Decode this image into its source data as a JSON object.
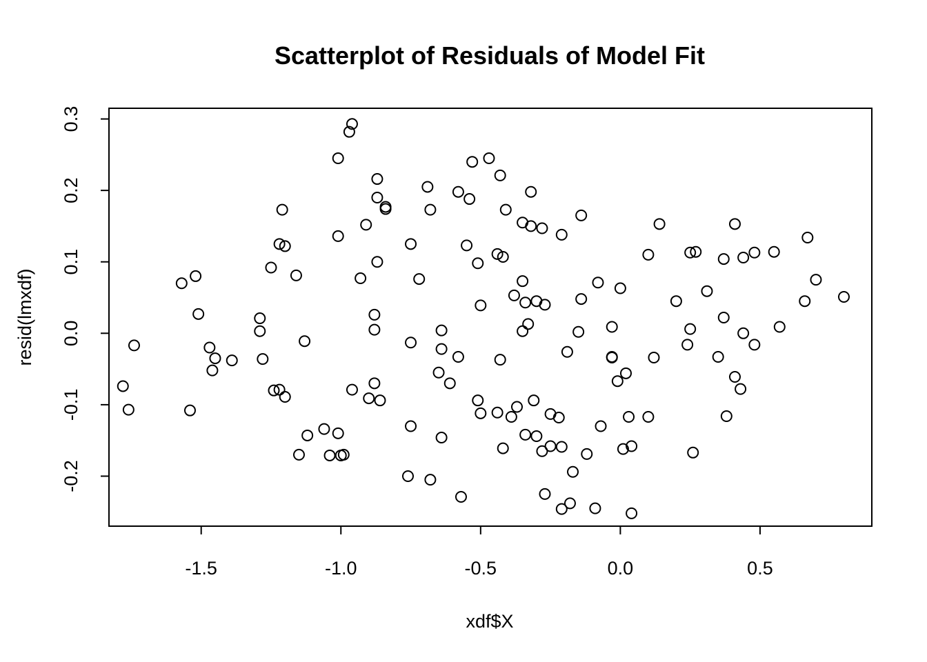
{
  "chart_data": {
    "type": "scatter",
    "title": "Scatterplot of Residuals of Model Fit",
    "xlabel": "xdf$X",
    "ylabel": "resid(lmxdf)",
    "xlim": [
      -1.83,
      0.9
    ],
    "ylim": [
      -0.27,
      0.315
    ],
    "xticks": [
      -1.5,
      -1.0,
      -0.5,
      0.0,
      0.5
    ],
    "xtick_labels": [
      "-1.5",
      "-1.0",
      "-0.5",
      "0.0",
      "0.5"
    ],
    "yticks": [
      -0.2,
      -0.1,
      0.0,
      0.1,
      0.2,
      0.3
    ],
    "ytick_labels": [
      "-0.2",
      "-0.1",
      "0.0",
      "0.1",
      "0.2",
      "0.3"
    ],
    "grid": false,
    "legend": "none",
    "marker": "open-circle",
    "points": [
      {
        "x": -1.78,
        "y": -0.074
      },
      {
        "x": -1.76,
        "y": -0.107
      },
      {
        "x": -1.74,
        "y": -0.017
      },
      {
        "x": -1.57,
        "y": 0.07
      },
      {
        "x": -1.54,
        "y": -0.108
      },
      {
        "x": -1.52,
        "y": 0.08
      },
      {
        "x": -1.51,
        "y": 0.027
      },
      {
        "x": -1.47,
        "y": -0.02
      },
      {
        "x": -1.46,
        "y": -0.052
      },
      {
        "x": -1.45,
        "y": -0.035
      },
      {
        "x": -1.39,
        "y": -0.038
      },
      {
        "x": -1.29,
        "y": 0.021
      },
      {
        "x": -1.29,
        "y": 0.003
      },
      {
        "x": -1.28,
        "y": -0.036
      },
      {
        "x": -1.25,
        "y": 0.092
      },
      {
        "x": -1.24,
        "y": -0.08
      },
      {
        "x": -1.22,
        "y": -0.079
      },
      {
        "x": -1.22,
        "y": 0.125
      },
      {
        "x": -1.21,
        "y": 0.173
      },
      {
        "x": -1.2,
        "y": 0.122
      },
      {
        "x": -1.2,
        "y": -0.089
      },
      {
        "x": -1.16,
        "y": 0.081
      },
      {
        "x": -1.15,
        "y": -0.17
      },
      {
        "x": -1.13,
        "y": -0.011
      },
      {
        "x": -1.12,
        "y": -0.143
      },
      {
        "x": -1.06,
        "y": -0.134
      },
      {
        "x": -1.04,
        "y": -0.171
      },
      {
        "x": -1.01,
        "y": -0.14
      },
      {
        "x": -1.0,
        "y": -0.171
      },
      {
        "x": -0.99,
        "y": -0.17
      },
      {
        "x": -1.01,
        "y": 0.245
      },
      {
        "x": -1.01,
        "y": 0.136
      },
      {
        "x": -0.97,
        "y": 0.282
      },
      {
        "x": -0.96,
        "y": 0.293
      },
      {
        "x": -0.96,
        "y": -0.079
      },
      {
        "x": -0.93,
        "y": 0.077
      },
      {
        "x": -0.91,
        "y": 0.152
      },
      {
        "x": -0.9,
        "y": -0.091
      },
      {
        "x": -0.88,
        "y": -0.07
      },
      {
        "x": -0.88,
        "y": 0.026
      },
      {
        "x": -0.88,
        "y": 0.005
      },
      {
        "x": -0.87,
        "y": 0.1
      },
      {
        "x": -0.87,
        "y": 0.216
      },
      {
        "x": -0.87,
        "y": 0.19
      },
      {
        "x": -0.86,
        "y": -0.094
      },
      {
        "x": -0.84,
        "y": 0.177
      },
      {
        "x": -0.84,
        "y": 0.174
      },
      {
        "x": -0.76,
        "y": -0.2
      },
      {
        "x": -0.75,
        "y": -0.13
      },
      {
        "x": -0.75,
        "y": -0.013
      },
      {
        "x": -0.75,
        "y": 0.125
      },
      {
        "x": -0.72,
        "y": 0.076
      },
      {
        "x": -0.69,
        "y": 0.205
      },
      {
        "x": -0.68,
        "y": 0.173
      },
      {
        "x": -0.68,
        "y": -0.205
      },
      {
        "x": -0.65,
        "y": -0.055
      },
      {
        "x": -0.64,
        "y": -0.146
      },
      {
        "x": -0.64,
        "y": 0.004
      },
      {
        "x": -0.64,
        "y": -0.022
      },
      {
        "x": -0.61,
        "y": -0.07
      },
      {
        "x": -0.58,
        "y": -0.033
      },
      {
        "x": -0.58,
        "y": 0.198
      },
      {
        "x": -0.57,
        "y": -0.229
      },
      {
        "x": -0.55,
        "y": 0.123
      },
      {
        "x": -0.54,
        "y": 0.188
      },
      {
        "x": -0.53,
        "y": 0.24
      },
      {
        "x": -0.51,
        "y": -0.094
      },
      {
        "x": -0.51,
        "y": 0.098
      },
      {
        "x": -0.5,
        "y": -0.112
      },
      {
        "x": -0.5,
        "y": 0.039
      },
      {
        "x": -0.47,
        "y": 0.245
      },
      {
        "x": -0.44,
        "y": 0.111
      },
      {
        "x": -0.44,
        "y": -0.111
      },
      {
        "x": -0.43,
        "y": 0.221
      },
      {
        "x": -0.43,
        "y": -0.037
      },
      {
        "x": -0.42,
        "y": 0.107
      },
      {
        "x": -0.42,
        "y": -0.161
      },
      {
        "x": -0.41,
        "y": 0.173
      },
      {
        "x": -0.39,
        "y": -0.117
      },
      {
        "x": -0.38,
        "y": 0.053
      },
      {
        "x": -0.37,
        "y": -0.103
      },
      {
        "x": -0.35,
        "y": 0.073
      },
      {
        "x": -0.35,
        "y": 0.155
      },
      {
        "x": -0.35,
        "y": 0.003
      },
      {
        "x": -0.34,
        "y": 0.043
      },
      {
        "x": -0.34,
        "y": -0.142
      },
      {
        "x": -0.33,
        "y": 0.013
      },
      {
        "x": -0.32,
        "y": 0.198
      },
      {
        "x": -0.32,
        "y": 0.15
      },
      {
        "x": -0.31,
        "y": -0.094
      },
      {
        "x": -0.3,
        "y": 0.045
      },
      {
        "x": -0.3,
        "y": -0.144
      },
      {
        "x": -0.28,
        "y": 0.147
      },
      {
        "x": -0.28,
        "y": -0.165
      },
      {
        "x": -0.27,
        "y": 0.04
      },
      {
        "x": -0.27,
        "y": -0.225
      },
      {
        "x": -0.25,
        "y": -0.113
      },
      {
        "x": -0.25,
        "y": -0.158
      },
      {
        "x": -0.22,
        "y": -0.118
      },
      {
        "x": -0.21,
        "y": -0.246
      },
      {
        "x": -0.21,
        "y": 0.138
      },
      {
        "x": -0.21,
        "y": -0.159
      },
      {
        "x": -0.19,
        "y": -0.026
      },
      {
        "x": -0.18,
        "y": -0.238
      },
      {
        "x": -0.17,
        "y": -0.194
      },
      {
        "x": -0.15,
        "y": 0.002
      },
      {
        "x": -0.14,
        "y": 0.048
      },
      {
        "x": -0.14,
        "y": 0.165
      },
      {
        "x": -0.12,
        "y": -0.169
      },
      {
        "x": -0.09,
        "y": -0.245
      },
      {
        "x": -0.08,
        "y": 0.071
      },
      {
        "x": -0.07,
        "y": -0.13
      },
      {
        "x": -0.03,
        "y": -0.033
      },
      {
        "x": -0.03,
        "y": 0.009
      },
      {
        "x": -0.03,
        "y": -0.034
      },
      {
        "x": -0.01,
        "y": -0.067
      },
      {
        "x": 0.0,
        "y": 0.063
      },
      {
        "x": 0.01,
        "y": -0.162
      },
      {
        "x": 0.02,
        "y": -0.056
      },
      {
        "x": 0.03,
        "y": -0.117
      },
      {
        "x": 0.04,
        "y": -0.158
      },
      {
        "x": 0.04,
        "y": -0.252
      },
      {
        "x": 0.1,
        "y": -0.117
      },
      {
        "x": 0.1,
        "y": 0.11
      },
      {
        "x": 0.12,
        "y": -0.034
      },
      {
        "x": 0.14,
        "y": 0.153
      },
      {
        "x": 0.2,
        "y": 0.045
      },
      {
        "x": 0.24,
        "y": -0.016
      },
      {
        "x": 0.25,
        "y": 0.006
      },
      {
        "x": 0.25,
        "y": 0.113
      },
      {
        "x": 0.26,
        "y": -0.167
      },
      {
        "x": 0.27,
        "y": 0.114
      },
      {
        "x": 0.31,
        "y": 0.059
      },
      {
        "x": 0.35,
        "y": -0.033
      },
      {
        "x": 0.37,
        "y": 0.104
      },
      {
        "x": 0.37,
        "y": 0.022
      },
      {
        "x": 0.38,
        "y": -0.116
      },
      {
        "x": 0.41,
        "y": -0.061
      },
      {
        "x": 0.41,
        "y": 0.153
      },
      {
        "x": 0.43,
        "y": -0.078
      },
      {
        "x": 0.44,
        "y": 0.0
      },
      {
        "x": 0.44,
        "y": 0.106
      },
      {
        "x": 0.48,
        "y": -0.016
      },
      {
        "x": 0.48,
        "y": 0.113
      },
      {
        "x": 0.55,
        "y": 0.114
      },
      {
        "x": 0.57,
        "y": 0.009
      },
      {
        "x": 0.66,
        "y": 0.045
      },
      {
        "x": 0.67,
        "y": 0.134
      },
      {
        "x": 0.7,
        "y": 0.075
      },
      {
        "x": 0.8,
        "y": 0.051
      }
    ]
  }
}
